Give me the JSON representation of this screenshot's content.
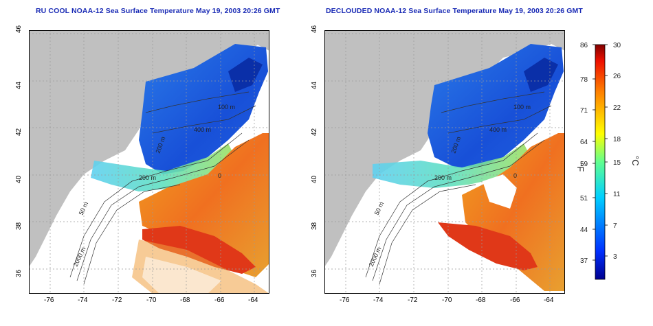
{
  "maps": [
    {
      "title": "RU COOL NOAA-12 Sea Surface Temperature May 19, 2003 20:26 GMT",
      "contour_labels": [
        "200 m",
        "400 m",
        "100 m",
        "2000 m",
        "50 m",
        "200 m",
        "0"
      ]
    },
    {
      "title": "DECLOUDED NOAA-12 Sea Surface Temperature May 19, 2003 20:26 GMT",
      "contour_labels": [
        "200 m",
        "400 m",
        "100 m",
        "2000 m",
        "50 m",
        "200 m",
        "0"
      ]
    }
  ],
  "axes": {
    "lon_ticks": [
      "-76",
      "-74",
      "-72",
      "-70",
      "-68",
      "-66",
      "-64"
    ],
    "lat_ticks": [
      "46",
      "44",
      "42",
      "40",
      "38",
      "36"
    ],
    "lon_range": [
      -77,
      -63
    ],
    "lat_range": [
      35,
      46
    ],
    "grid": "dotted"
  },
  "colorbar": {
    "fahrenheit_ticks": [
      "86",
      "78",
      "71",
      "64",
      "59",
      "51",
      "44",
      "37"
    ],
    "celsius_ticks": [
      "30",
      "26",
      "22",
      "18",
      "15",
      "11",
      "7",
      "3"
    ],
    "fahrenheit_unit": "°F",
    "celsius_unit": "°C",
    "range_c": [
      0,
      30
    ]
  },
  "colors": {
    "land": "#c0c0c0",
    "title": "#1a2bb5",
    "cold": "#1040d8",
    "warm": "#e84020"
  }
}
